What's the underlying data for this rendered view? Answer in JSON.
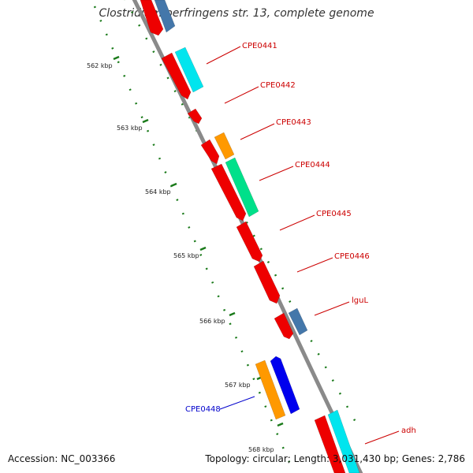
{
  "title": "Clostridium perfringens str. 13, complete genome",
  "footer": {
    "accession": "Accession: NC_003366",
    "summary": "Topology: circular; Length: 3,031,430 bp; Genes: 2,786"
  },
  "colors": {
    "backbone": "#8a8a8a",
    "ticks": "#1a7a1a",
    "label_forward": "#cc0000",
    "label_reverse": "#0000cc",
    "red": "#ee0000",
    "cyan": "#00e5ee",
    "orange": "#ff9900",
    "green": "#00e08a",
    "steelblue": "#4477aa",
    "blue": "#0000ee"
  },
  "axis": {
    "unit": "kbp",
    "ticks": [
      {
        "label": "562 kbp"
      },
      {
        "label": "563 kbp"
      },
      {
        "label": "564 kbp"
      },
      {
        "label": "565 kbp"
      },
      {
        "label": "566 kbp"
      },
      {
        "label": "567 kbp"
      },
      {
        "label": "568 kbp"
      }
    ]
  },
  "gene_labels": [
    {
      "text": "CPE0441",
      "strand": "forward"
    },
    {
      "text": "CPE0442",
      "strand": "forward"
    },
    {
      "text": "CPE0443",
      "strand": "forward"
    },
    {
      "text": "CPE0444",
      "strand": "forward"
    },
    {
      "text": "CPE0445",
      "strand": "forward"
    },
    {
      "text": "CPE0446",
      "strand": "forward"
    },
    {
      "text": "lguL",
      "strand": "forward"
    },
    {
      "text": "CPE0448",
      "strand": "reverse"
    },
    {
      "text": "adh",
      "strand": "forward"
    }
  ]
}
